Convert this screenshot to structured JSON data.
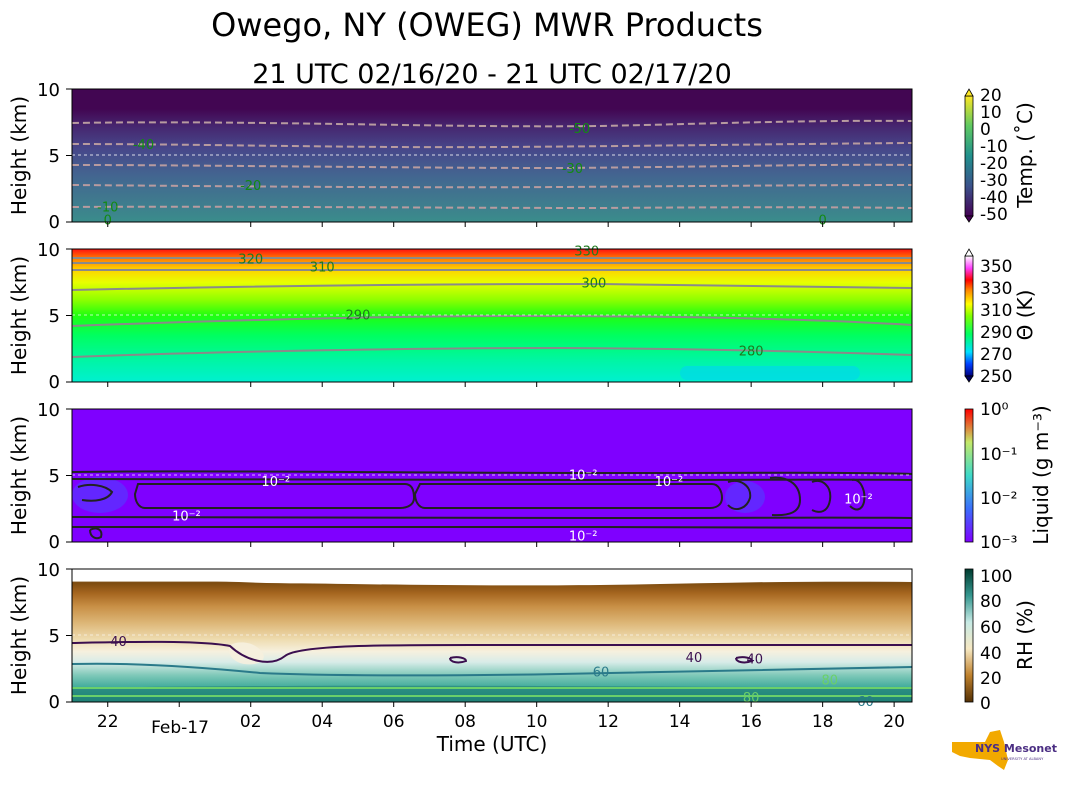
{
  "figure": {
    "title": "Owego, NY (OWEG) MWR Products",
    "subtitle": "21 UTC 02/16/20 - 21 UTC 02/17/20",
    "xlabel": "Time (UTC)",
    "logo_text": "NYS Mesonet",
    "logo_subtext": "UNIVERSITY AT ALBANY"
  },
  "chart_data": [
    {
      "type": "heatmap",
      "name": "temperature",
      "ylabel": "Height (km)",
      "ylim": [
        0,
        10
      ],
      "yticks": [
        "0",
        "5",
        "10"
      ],
      "x": [
        "22",
        "02",
        "04",
        "06",
        "08",
        "10",
        "12",
        "14",
        "16",
        "18",
        "20"
      ],
      "x_date_label": "Feb-17",
      "xlim_hours": [
        21,
        44.5
      ],
      "colorbar_label": "Temp. (˚C)",
      "colorbar_ticks": [
        "20",
        "10",
        "0",
        "-10",
        "-20",
        "-30",
        "-40",
        "-50"
      ],
      "range": [
        -50,
        20
      ],
      "contour_labels": [
        {
          "text": "-50",
          "t": 35.2,
          "h": 7.0
        },
        {
          "text": "-40",
          "t": 23.0,
          "h": 5.8
        },
        {
          "text": "-30",
          "t": 35.0,
          "h": 4.0
        },
        {
          "text": "-20",
          "t": 26.0,
          "h": 2.7
        },
        {
          "text": "-10",
          "t": 22.0,
          "h": 1.1
        },
        {
          "text": "0",
          "t": 22.0,
          "h": 0.1
        },
        {
          "text": "0",
          "t": 42.0,
          "h": 0.1
        }
      ]
    },
    {
      "type": "heatmap",
      "name": "potential-temperature",
      "ylabel": "Height (km)",
      "ylim": [
        0,
        10
      ],
      "yticks": [
        "0",
        "5",
        "10"
      ],
      "colorbar_label": "Θ (K)",
      "colorbar_ticks": [
        "350",
        "330",
        "310",
        "290",
        "270",
        "250"
      ],
      "range": [
        250,
        360
      ],
      "contour_labels": [
        {
          "text": "330",
          "t": 35.4,
          "h": 9.8
        },
        {
          "text": "320",
          "t": 26.0,
          "h": 9.2
        },
        {
          "text": "310",
          "t": 28.0,
          "h": 8.6
        },
        {
          "text": "300",
          "t": 35.6,
          "h": 7.4
        },
        {
          "text": "290",
          "t": 29.0,
          "h": 5.0
        },
        {
          "text": "280",
          "t": 40.0,
          "h": 2.3
        }
      ]
    },
    {
      "type": "heatmap",
      "name": "liquid",
      "ylabel": "Height (km)",
      "ylim": [
        0,
        10
      ],
      "yticks": [
        "0",
        "5",
        "10"
      ],
      "colorbar_label": "Liquid (g m⁻³)",
      "colorbar_ticks": [
        "10⁰",
        "10⁻¹",
        "10⁻²",
        "10⁻³"
      ],
      "contour_labels": [
        {
          "text": "10⁻²",
          "t": 35.3,
          "h": 5.0
        },
        {
          "text": "10⁻²",
          "t": 26.7,
          "h": 4.5
        },
        {
          "text": "10⁻²",
          "t": 37.7,
          "h": 4.5
        },
        {
          "text": "10⁻²",
          "t": 24.2,
          "h": 1.9
        },
        {
          "text": "10⁻²",
          "t": 35.3,
          "h": 0.4
        },
        {
          "text": "10⁻²",
          "t": 43.0,
          "h": 3.2
        }
      ]
    },
    {
      "type": "heatmap",
      "name": "relative-humidity",
      "ylabel": "Height (km)",
      "ylim": [
        0,
        10
      ],
      "yticks": [
        "0",
        "5",
        "10"
      ],
      "colorbar_label": "RH (%)",
      "colorbar_ticks": [
        "100",
        "80",
        "60",
        "40",
        "20",
        "0"
      ],
      "range": [
        0,
        100
      ],
      "contour_labels": [
        {
          "text": "40",
          "t": 22.3,
          "h": 4.5
        },
        {
          "text": "40",
          "t": 38.4,
          "h": 3.3
        },
        {
          "text": "40",
          "t": 40.1,
          "h": 3.2
        },
        {
          "text": "60",
          "t": 35.8,
          "h": 2.2
        },
        {
          "text": "60",
          "t": 43.2,
          "h": 0.0
        },
        {
          "text": "80",
          "t": 42.2,
          "h": 1.6
        },
        {
          "text": "80",
          "t": 40.0,
          "h": 0.3
        }
      ]
    }
  ]
}
